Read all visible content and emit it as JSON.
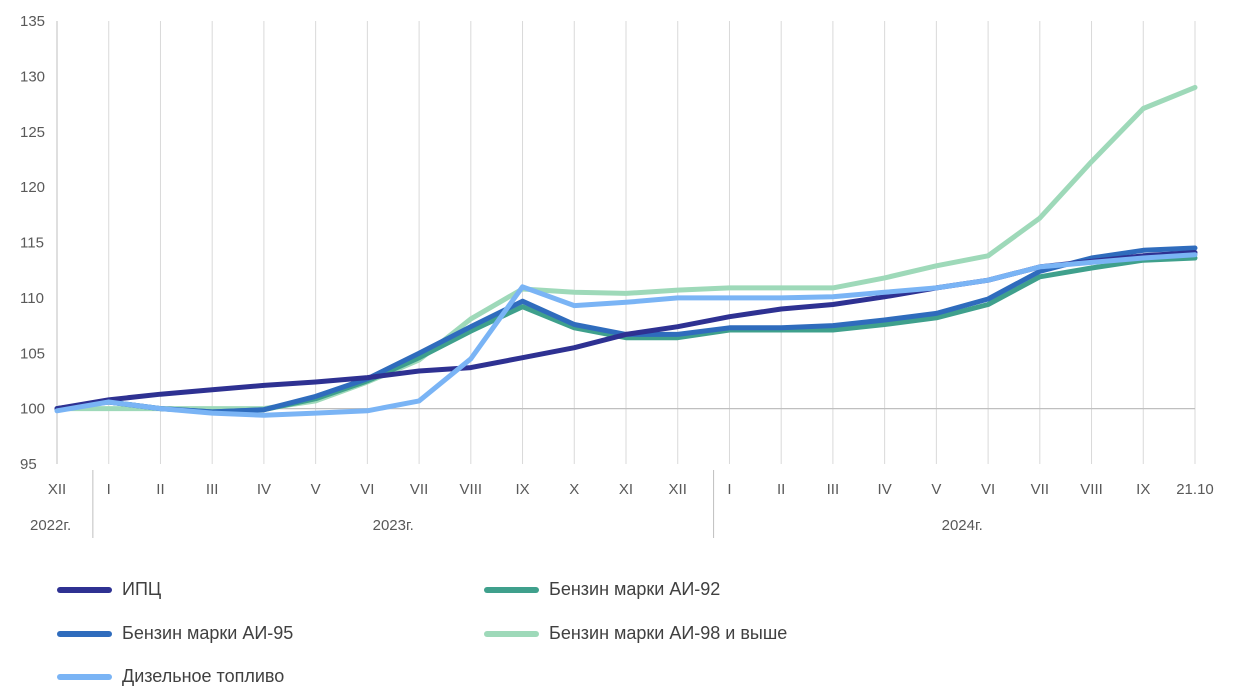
{
  "chart_data": {
    "type": "line",
    "title": "",
    "xlabel": "",
    "ylabel": "",
    "ylim": [
      95,
      135
    ],
    "yticks": [
      95,
      100,
      105,
      110,
      115,
      120,
      125,
      130,
      135
    ],
    "grid": "vertical lines + baseline at 100",
    "legend_position": "bottom",
    "categories": [
      "XII",
      "I",
      "II",
      "III",
      "IV",
      "V",
      "VI",
      "VII",
      "VIII",
      "IX",
      "X",
      "XI",
      "XII",
      "I",
      "II",
      "III",
      "IV",
      "V",
      "VI",
      "VII",
      "VIII",
      "IX",
      "21.10"
    ],
    "year_labels": [
      "2022г.",
      "2023г.",
      "2024г."
    ],
    "series": [
      {
        "name": "ИПЦ",
        "color": "#2e3192",
        "values": [
          100.0,
          100.8,
          101.3,
          101.7,
          102.1,
          102.4,
          102.8,
          103.4,
          103.7,
          104.6,
          105.5,
          106.7,
          107.4,
          108.3,
          109.0,
          109.4,
          110.1,
          110.9,
          111.6,
          112.8,
          113.3,
          113.8,
          114.1
        ]
      },
      {
        "name": "Бензин марки АИ-92",
        "color": "#3fa08c",
        "values": [
          100.0,
          100.6,
          100.0,
          99.7,
          99.9,
          100.9,
          102.5,
          104.6,
          107.0,
          109.2,
          107.3,
          106.4,
          106.4,
          107.1,
          107.1,
          107.1,
          107.6,
          108.2,
          109.4,
          111.9,
          112.7,
          113.4,
          113.6
        ]
      },
      {
        "name": "Бензин марки АИ-95",
        "color": "#2f6cbd",
        "values": [
          100.0,
          100.6,
          100.0,
          99.7,
          99.9,
          101.1,
          102.7,
          105.0,
          107.4,
          109.7,
          107.6,
          106.7,
          106.7,
          107.3,
          107.3,
          107.5,
          108.0,
          108.6,
          109.9,
          112.4,
          113.6,
          114.3,
          114.5
        ]
      },
      {
        "name": "Бензин марки АИ-98 и выше",
        "color": "#9ed9b9",
        "values": [
          100.0,
          100.0,
          100.0,
          100.0,
          100.0,
          100.7,
          102.4,
          104.4,
          108.1,
          110.8,
          110.5,
          110.4,
          110.7,
          110.9,
          110.9,
          110.9,
          111.8,
          112.9,
          113.8,
          117.2,
          122.3,
          127.1,
          129.0
        ]
      },
      {
        "name": "Дизельное топливо",
        "color": "#7ab4f5",
        "values": [
          99.8,
          100.6,
          100.0,
          99.6,
          99.4,
          99.6,
          99.8,
          100.7,
          104.5,
          111.0,
          109.3,
          109.6,
          110.0,
          110.0,
          110.0,
          110.1,
          110.5,
          110.9,
          111.6,
          112.8,
          113.2,
          113.6,
          113.9
        ]
      }
    ]
  },
  "legend": [
    {
      "label": "ИПЦ",
      "color": "#2e3192"
    },
    {
      "label": "Бензин марки АИ-92",
      "color": "#3fa08c"
    },
    {
      "label": "Бензин марки АИ-95",
      "color": "#2f6cbd"
    },
    {
      "label": "Бензин марки АИ-98 и выше",
      "color": "#9ed9b9"
    },
    {
      "label": "Дизельное топливо",
      "color": "#7ab4f5"
    }
  ]
}
